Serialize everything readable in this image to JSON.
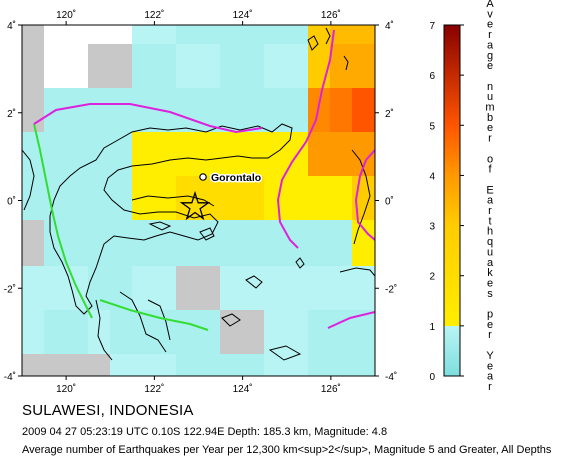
{
  "map": {
    "lon_ticks": [
      {
        "value": 120,
        "label": "120˚"
      },
      {
        "value": 122,
        "label": "122˚"
      },
      {
        "value": 124,
        "label": "124˚"
      },
      {
        "value": 126,
        "label": "126˚"
      }
    ],
    "lat_ticks": [
      {
        "value": 4,
        "label": "4˚"
      },
      {
        "value": 2,
        "label": "2˚"
      },
      {
        "value": 0,
        "label": "0˚"
      },
      {
        "value": -2,
        "label": "-2˚"
      },
      {
        "value": -4,
        "label": "-4˚"
      }
    ],
    "city_label": "Gorontalo",
    "epicenter": {
      "lat": -0.1,
      "lon": 122.94
    },
    "colors": {
      "grid_cell_default": "#aaf0ee",
      "coastline": "#000000",
      "plate_boundary_green": "#33dd33",
      "plate_boundary_magenta": "#dd22dd",
      "no_data": "#c8c8c8",
      "empty": "#ffffff"
    }
  },
  "colorbar": {
    "title": "Average number of Earthquakes per Year",
    "ticks": [
      "0",
      "1",
      "2",
      "3",
      "4",
      "5",
      "6",
      "7"
    ],
    "range": [
      0,
      7
    ],
    "stops": [
      {
        "value": 0,
        "color": "#7fdede"
      },
      {
        "value": 1,
        "color": "#b9f4f4"
      },
      {
        "value": 1,
        "color": "#ffee00"
      },
      {
        "value": 3,
        "color": "#ffcc00"
      },
      {
        "value": 4,
        "color": "#ff9900"
      },
      {
        "value": 5,
        "color": "#ff5500"
      },
      {
        "value": 7,
        "color": "#880000"
      }
    ]
  },
  "captions": {
    "title": "SULAWESI, INDONESIA",
    "event": "2009 04 27 05:23:19 UTC 0.10S 122.94E Depth: 185.3 km, Magnitude: 4.8",
    "description": "Average number of Earthquakes per Year per 12,300 km<sup>2</sup>, Magnitude 5 and Greater, All Depths"
  }
}
